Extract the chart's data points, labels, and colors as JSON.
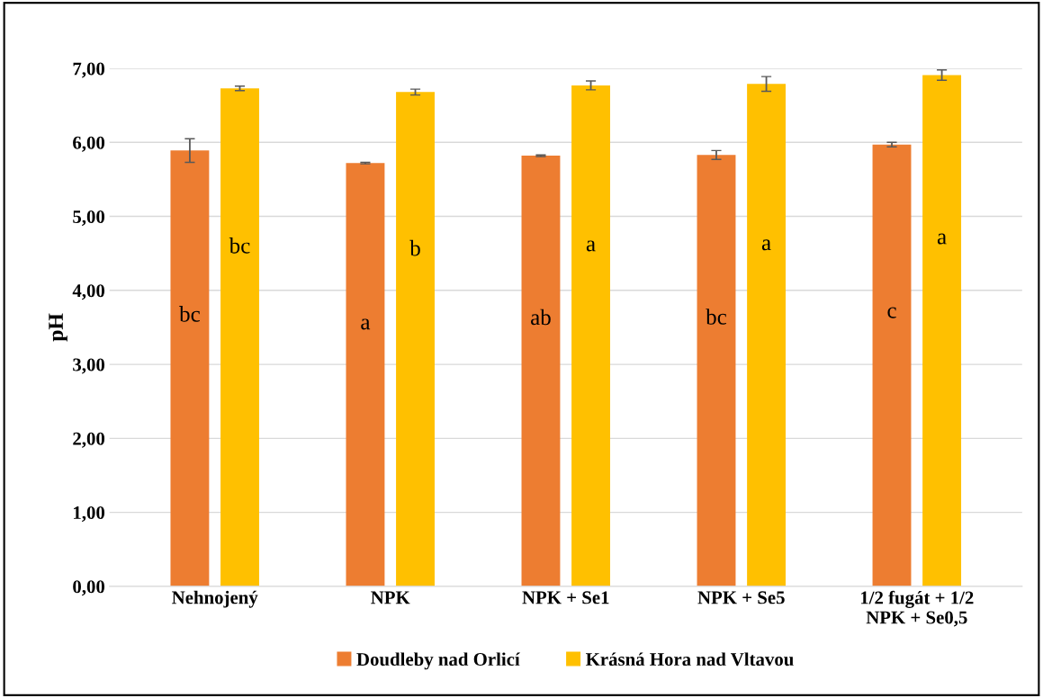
{
  "chart_data": {
    "type": "bar",
    "ylabel": "pH",
    "categories": [
      "Nehnojený",
      "NPK",
      "NPK + Se1",
      "NPK + Se5",
      "1/2 fugát + 1/2\nNPK + Se0,5"
    ],
    "series": [
      {
        "name": "Doudleby nad Orlicí",
        "color": "#ed7d31",
        "values": [
          5.89,
          5.72,
          5.82,
          5.83,
          5.97
        ],
        "errors": [
          0.16,
          0.01,
          0.01,
          0.06,
          0.03
        ],
        "value_labels": [
          "bc",
          "a",
          "ab",
          "bc",
          "c"
        ]
      },
      {
        "name": "Krásná Hora nad Vltavou",
        "color": "#ffc000",
        "values": [
          6.73,
          6.68,
          6.77,
          6.79,
          6.91
        ],
        "errors": [
          0.03,
          0.04,
          0.06,
          0.1,
          0.07
        ],
        "value_labels": [
          "bc",
          "b",
          "a",
          "a",
          "a"
        ]
      }
    ],
    "ylim": [
      0,
      7
    ],
    "yticks": [
      {
        "value": 0,
        "label": "0,00"
      },
      {
        "value": 1,
        "label": "1,00"
      },
      {
        "value": 2,
        "label": "2,00"
      },
      {
        "value": 3,
        "label": "3,00"
      },
      {
        "value": 4,
        "label": "4,00"
      },
      {
        "value": 5,
        "label": "5,00"
      },
      {
        "value": 6,
        "label": "6,00"
      },
      {
        "value": 7,
        "label": "7,00"
      }
    ],
    "grid": "y",
    "legend": "bottom"
  }
}
